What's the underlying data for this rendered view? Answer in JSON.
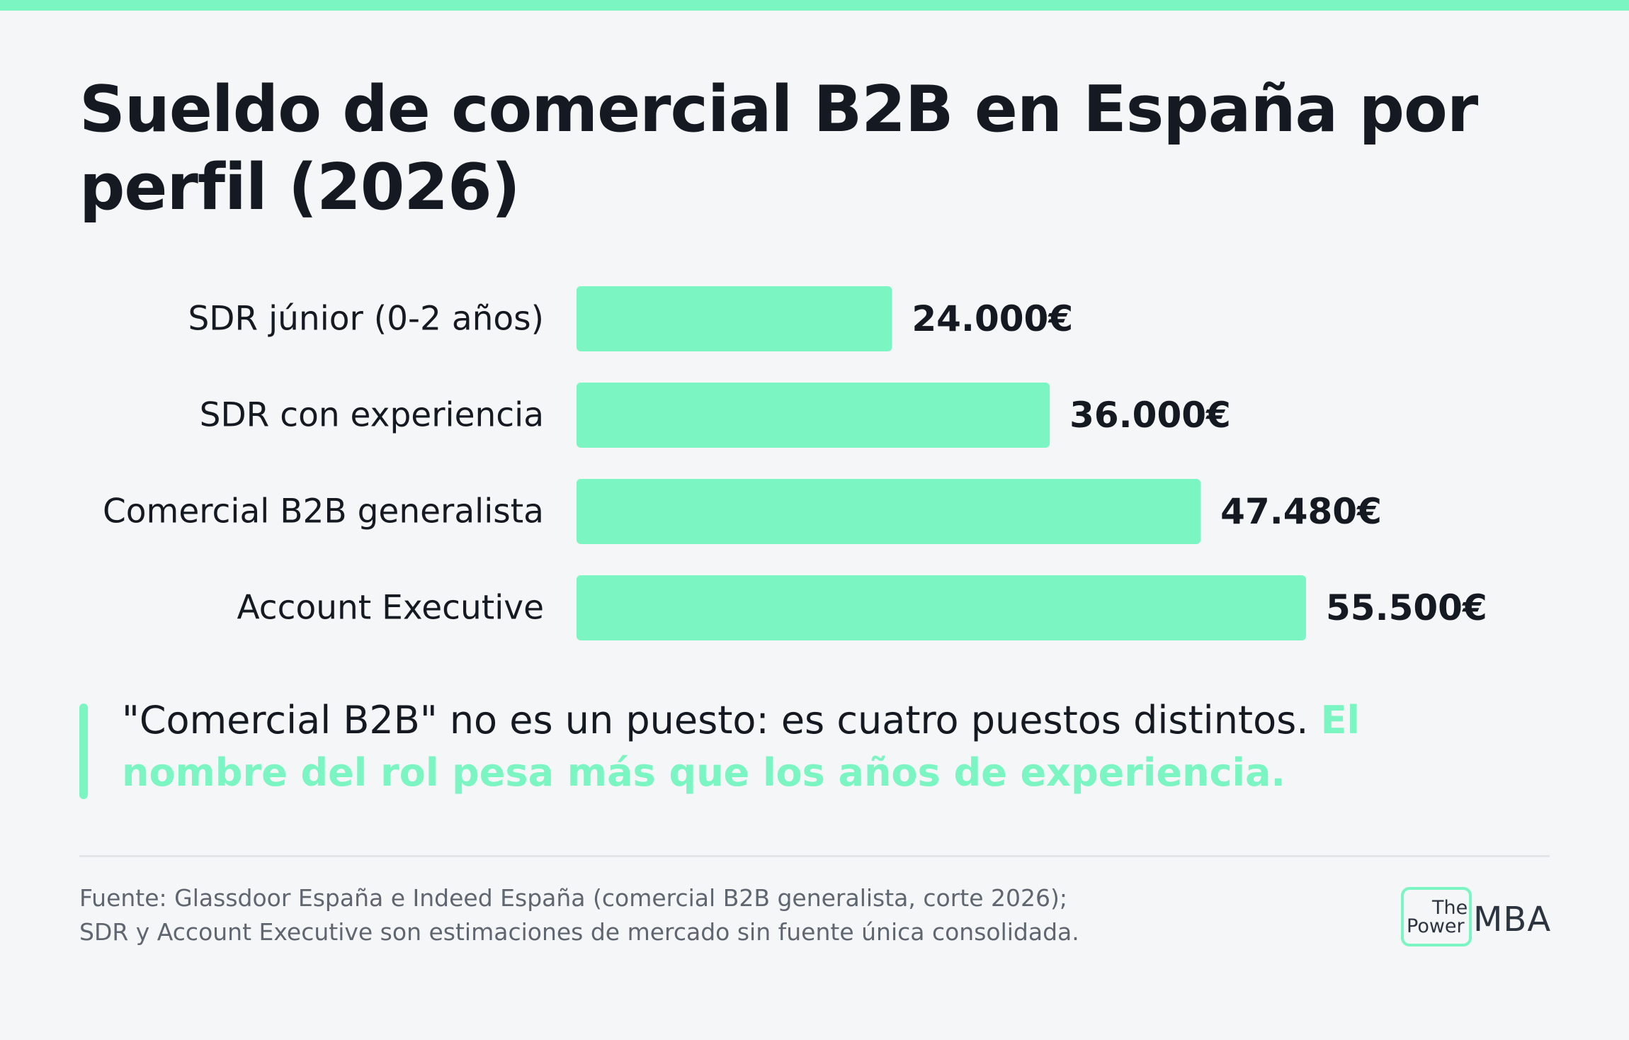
{
  "title": "Sueldo de comercial B2B en España por perfil (2026)",
  "chart_data": {
    "type": "bar",
    "orientation": "horizontal",
    "title": "Sueldo de comercial B2B en España por perfil (2026)",
    "categories": [
      "SDR júnior (0-2 años)",
      "SDR con experiencia",
      "Comercial B2B generalista",
      "Account Executive"
    ],
    "values": [
      24000,
      36000,
      47480,
      55500
    ],
    "value_labels": [
      "24.000€",
      "36.000€",
      "47.480€",
      "55.500€"
    ],
    "xlabel": "",
    "ylabel": "",
    "xlim": [
      0,
      55500
    ],
    "grid": false,
    "legend": "none",
    "bar_color": "#7bf6c3"
  },
  "callout": {
    "text": "\"Comercial B2B\" no es un puesto: es cuatro puestos distintos. ",
    "highlight": "El nombre del rol pesa más que los años de experiencia."
  },
  "source": {
    "line1": "Fuente: Glassdoor España e Indeed España (comercial B2B generalista, corte 2026);",
    "line2": "SDR y Account Executive son estimaciones de mercado sin fuente única consolidada."
  },
  "logo": {
    "the": "The",
    "power": "Power",
    "mba": "MBA"
  },
  "colors": {
    "accent": "#7bf6c3",
    "text": "#151a22",
    "background": "#f5f6f8",
    "muted": "#5f6670"
  }
}
